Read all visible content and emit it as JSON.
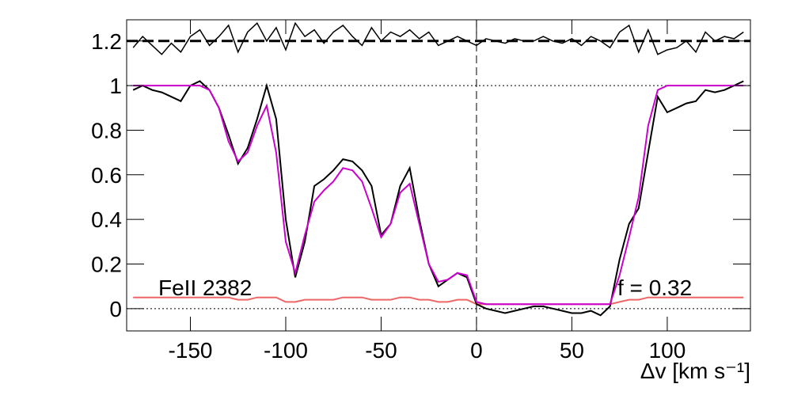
{
  "chart_data": {
    "type": "line",
    "xlabel": "Δv [km s⁻¹]",
    "annotations": [
      "FeII 2382",
      "f = 0.32"
    ],
    "x": [
      -180,
      -175,
      -170,
      -165,
      -160,
      -155,
      -150,
      -145,
      -140,
      -135,
      -130,
      -125,
      -120,
      -115,
      -110,
      -105,
      -100,
      -95,
      -90,
      -85,
      -80,
      -75,
      -70,
      -65,
      -60,
      -55,
      -50,
      -45,
      -40,
      -35,
      -30,
      -25,
      -20,
      -15,
      -10,
      -5,
      0,
      5,
      10,
      15,
      20,
      25,
      30,
      35,
      40,
      45,
      50,
      55,
      60,
      65,
      70,
      75,
      80,
      85,
      90,
      95,
      100,
      105,
      110,
      115,
      120,
      125,
      130,
      135,
      140
    ],
    "series": [
      {
        "color": "#000000",
        "values": [
          0.98,
          1.0,
          0.98,
          0.97,
          0.95,
          0.93,
          1.0,
          1.02,
          0.98,
          0.9,
          0.78,
          0.65,
          0.72,
          0.85,
          1.0,
          0.85,
          0.4,
          0.14,
          0.3,
          0.55,
          0.58,
          0.62,
          0.67,
          0.66,
          0.62,
          0.55,
          0.33,
          0.38,
          0.55,
          0.63,
          0.4,
          0.2,
          0.1,
          0.13,
          0.16,
          0.14,
          0.02,
          0.0,
          -0.01,
          -0.02,
          -0.01,
          0.0,
          0.01,
          0.01,
          0.0,
          -0.01,
          -0.02,
          -0.02,
          -0.01,
          -0.03,
          0.01,
          0.22,
          0.38,
          0.45,
          0.7,
          0.95,
          0.88,
          0.9,
          0.92,
          0.93,
          0.98,
          0.97,
          0.98,
          1.0,
          1.02
        ]
      },
      {
        "color": "#cc00cc",
        "values": [
          1.0,
          1.0,
          1.0,
          1.0,
          1.0,
          1.0,
          1.0,
          1.0,
          0.98,
          0.9,
          0.75,
          0.66,
          0.7,
          0.82,
          0.91,
          0.7,
          0.3,
          0.16,
          0.33,
          0.48,
          0.53,
          0.57,
          0.63,
          0.62,
          0.57,
          0.45,
          0.32,
          0.38,
          0.52,
          0.56,
          0.38,
          0.2,
          0.12,
          0.13,
          0.16,
          0.15,
          0.03,
          0.02,
          0.02,
          0.02,
          0.02,
          0.02,
          0.02,
          0.02,
          0.02,
          0.02,
          0.02,
          0.02,
          0.02,
          0.02,
          0.02,
          0.15,
          0.32,
          0.5,
          0.82,
          0.98,
          1.0,
          1.0,
          1.0,
          1.0,
          1.0,
          1.0,
          1.0,
          1.0,
          1.0
        ]
      },
      {
        "color": "#ee6666",
        "values": [
          0.05,
          0.05,
          0.05,
          0.05,
          0.05,
          0.05,
          0.05,
          0.05,
          0.05,
          0.05,
          0.05,
          0.04,
          0.04,
          0.05,
          0.05,
          0.05,
          0.03,
          0.03,
          0.04,
          0.04,
          0.04,
          0.04,
          0.05,
          0.05,
          0.05,
          0.04,
          0.04,
          0.04,
          0.05,
          0.05,
          0.04,
          0.04,
          0.03,
          0.03,
          0.04,
          0.04,
          0.02,
          0.02,
          0.02,
          0.02,
          0.02,
          0.02,
          0.02,
          0.02,
          0.02,
          0.02,
          0.02,
          0.02,
          0.02,
          0.02,
          0.02,
          0.03,
          0.04,
          0.04,
          0.05,
          0.05,
          0.05,
          0.05,
          0.05,
          0.05,
          0.05,
          0.05,
          0.05,
          0.05,
          0.05
        ]
      },
      {
        "color": "#000000",
        "values": [
          1.17,
          1.22,
          1.18,
          1.14,
          1.19,
          1.15,
          1.22,
          1.25,
          1.18,
          1.22,
          1.27,
          1.15,
          1.24,
          1.28,
          1.2,
          1.26,
          1.16,
          1.28,
          1.22,
          1.25,
          1.19,
          1.24,
          1.27,
          1.22,
          1.18,
          1.26,
          1.2,
          1.24,
          1.22,
          1.25,
          1.21,
          1.24,
          1.18,
          1.2,
          1.22,
          1.2,
          1.18,
          1.21,
          1.2,
          1.19,
          1.21,
          1.2,
          1.2,
          1.22,
          1.2,
          1.19,
          1.21,
          1.18,
          1.22,
          1.2,
          1.17,
          1.24,
          1.27,
          1.15,
          1.25,
          1.14,
          1.16,
          1.17,
          1.2,
          1.15,
          1.24,
          1.2,
          1.22,
          1.21,
          1.24
        ]
      }
    ],
    "xlim": [
      -183.4,
      143.6
    ],
    "ylim": [
      -0.1,
      1.295
    ],
    "xticks": [
      -150,
      -100,
      -50,
      0,
      50,
      100
    ],
    "yticks": [
      0,
      0.2,
      0.4,
      0.6,
      0.8,
      1,
      1.2
    ],
    "hlines": [
      0,
      1
    ],
    "ref_level": 1.2,
    "vline": 0
  }
}
